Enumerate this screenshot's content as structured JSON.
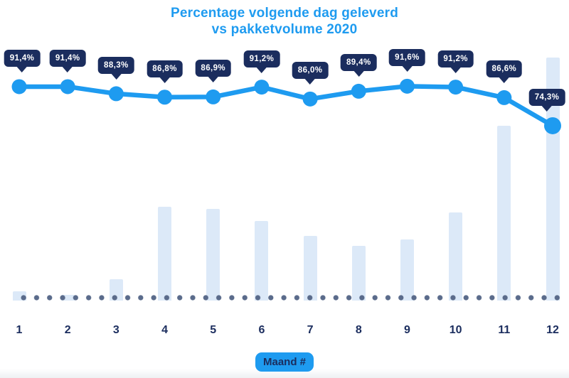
{
  "chart_data": {
    "type": "line",
    "combo_types": [
      "line",
      "bar"
    ],
    "title": "Percentage volgende dag geleverd vs pakketvolume 2020",
    "title_lines": [
      "Percentage volgende dag geleverd",
      "vs pakketvolume 2020"
    ],
    "xlabel": "Maand #",
    "categories": [
      "1",
      "2",
      "3",
      "4",
      "5",
      "6",
      "7",
      "8",
      "9",
      "10",
      "11",
      "12"
    ],
    "series": [
      {
        "name": "Percentage volgende dag geleverd",
        "type": "line",
        "unit": "%",
        "values": [
          91.4,
          91.4,
          88.3,
          86.8,
          86.9,
          91.2,
          86.0,
          89.4,
          91.6,
          91.2,
          86.6,
          74.3
        ],
        "point_labels": [
          "91,4%",
          "91,4%",
          "88,3%",
          "86,8%",
          "86,9%",
          "91,2%",
          "86,0%",
          "89,4%",
          "91,6%",
          "91,2%",
          "86,6%",
          "74,3%"
        ]
      },
      {
        "name": "Pakketvolume 2020",
        "type": "bar",
        "unit": "relative % of max (no axis shown)",
        "values": [
          3.8,
          2.3,
          8.8,
          38.6,
          37.7,
          32.7,
          26.6,
          22.5,
          25.1,
          36.3,
          71.9,
          100
        ]
      }
    ],
    "legend": "none",
    "grid": "none",
    "y_axis": "hidden",
    "baseline_style": "dotted"
  },
  "colors": {
    "accent_blue": "#1E9BF0",
    "navy": "#1B2D5E",
    "bar_fill": "#DCE9F8",
    "baseline_dot": "#5A6B8B",
    "tooltip_text": "#FFFFFF",
    "background": "#FFFFFF"
  }
}
